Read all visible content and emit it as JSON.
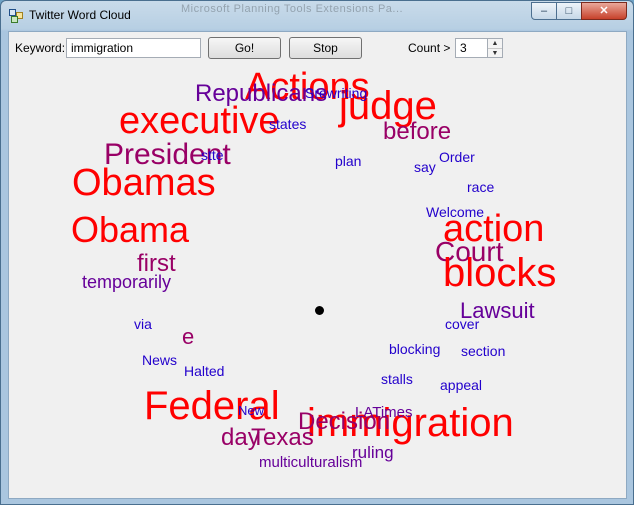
{
  "window": {
    "title": "Twitter Word Cloud",
    "background_title": "Microsoft Planning Tools Extensions Pa...",
    "controls": {
      "minimize": "–",
      "maximize": "□",
      "close": "✕"
    }
  },
  "toolbar": {
    "keyword_label": "Keyword:",
    "keyword_value": "immigration",
    "go_label": "Go!",
    "stop_label": "Stop",
    "count_label": "Count >",
    "count_value": "3",
    "spin_up": "▲",
    "spin_down": "▼"
  },
  "colors": {
    "red": "#ff0000",
    "purple": "#660099",
    "magenta": "#990066",
    "blue": "#2200cc",
    "window_bg": "#f0f0f0"
  },
  "cloud": {
    "words": [
      {
        "text": "Actions",
        "color": "#ff0000"
      },
      {
        "text": "Republicans",
        "color": "#660099"
      },
      {
        "text": "executive",
        "color": "#ff0000"
      },
      {
        "text": "judge",
        "color": "#ff0000"
      },
      {
        "text": "before",
        "color": "#990066"
      },
      {
        "text": "President",
        "color": "#990066"
      },
      {
        "text": "Obamas",
        "color": "#ff0000"
      },
      {
        "text": "Obama",
        "color": "#ff0000"
      },
      {
        "text": "action",
        "color": "#ff0000"
      },
      {
        "text": "Court",
        "color": "#990066"
      },
      {
        "text": "blocks",
        "color": "#ff0000"
      },
      {
        "text": "first",
        "color": "#990066"
      },
      {
        "text": "temporarily",
        "color": "#660099"
      },
      {
        "text": "Lawsuit",
        "color": "#660099"
      },
      {
        "text": "e",
        "color": "#990066"
      },
      {
        "text": "Federal",
        "color": "#ff0000"
      },
      {
        "text": "immigration",
        "color": "#ff0000"
      },
      {
        "text": "Decision",
        "color": "#990066"
      },
      {
        "text": "Texas",
        "color": "#990066"
      },
      {
        "text": "day",
        "color": "#990066"
      },
      {
        "text": "ruling",
        "color": "#660099"
      },
      {
        "text": "multiculturalism",
        "color": "#660099"
      },
      {
        "text": "LATimes",
        "color": "#660099"
      },
      {
        "text": "New",
        "color": "#2200cc"
      },
      {
        "text": "stalls",
        "color": "#2200cc"
      },
      {
        "text": "appeal",
        "color": "#2200cc"
      },
      {
        "text": "blocking",
        "color": "#2200cc"
      },
      {
        "text": "section",
        "color": "#2200cc"
      },
      {
        "text": "cover",
        "color": "#2200cc"
      },
      {
        "text": "via",
        "color": "#2200cc"
      },
      {
        "text": "News",
        "color": "#2200cc"
      },
      {
        "text": "Halted",
        "color": "#2200cc"
      },
      {
        "text": "Welcome",
        "color": "#2200cc"
      },
      {
        "text": "race",
        "color": "#2200cc"
      },
      {
        "text": "say",
        "color": "#2200cc"
      },
      {
        "text": "Order",
        "color": "#2200cc"
      },
      {
        "text": "plan",
        "color": "#2200cc"
      },
      {
        "text": "states",
        "color": "#2200cc"
      },
      {
        "text": "stte",
        "color": "#2200cc"
      },
      {
        "text": "Srewriting",
        "color": "#2200cc"
      }
    ]
  }
}
